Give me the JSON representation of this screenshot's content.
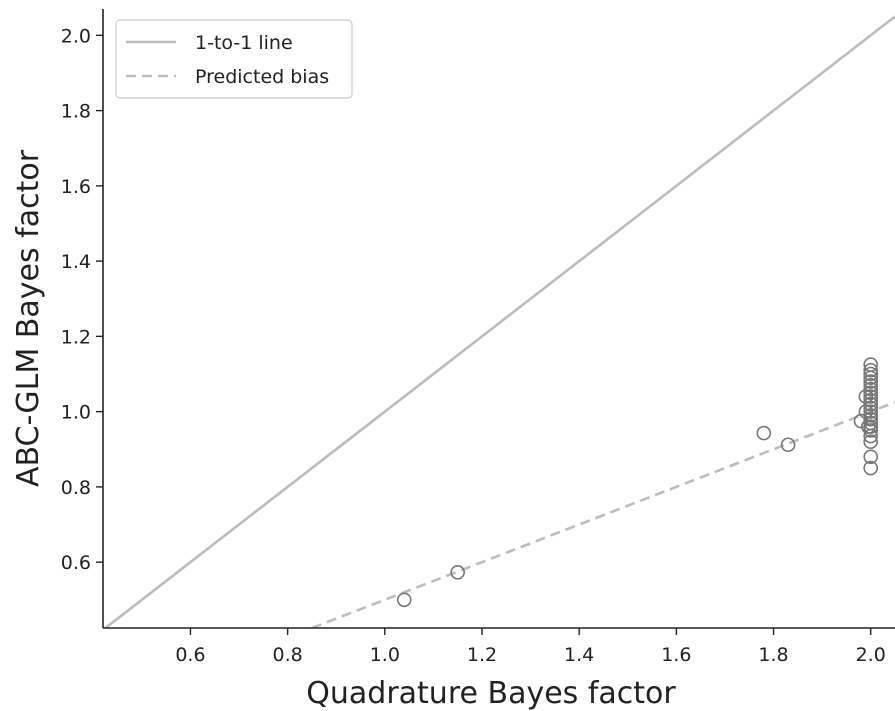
{
  "chart_data": {
    "type": "scatter",
    "xlabel": "Quadrature Bayes factor",
    "ylabel": "ABC-GLM Bayes factor",
    "xlim": [
      0.42,
      2.05
    ],
    "ylim": [
      0.425,
      2.07
    ],
    "xticks": [
      0.6,
      0.8,
      1.0,
      1.2,
      1.4,
      1.6,
      1.8,
      2.0
    ],
    "xtick_labels": [
      "0.6",
      "0.8",
      "1.0",
      "1.2",
      "1.4",
      "1.6",
      "1.8",
      "2.0"
    ],
    "yticks": [
      0.6,
      0.8,
      1.0,
      1.2,
      1.4,
      1.6,
      1.8,
      2.0
    ],
    "ytick_labels": [
      "0.6",
      "0.8",
      "1.0",
      "1.2",
      "1.4",
      "1.6",
      "1.8",
      "2.0"
    ],
    "grid": false,
    "legend_position": "top-left",
    "lines": [
      {
        "name": "1-to-1 line",
        "style": "solid",
        "slope": 1.0,
        "intercept": 0.0,
        "color": "#bdbdbd"
      },
      {
        "name": "Predicted bias",
        "style": "dashed",
        "slope": 0.5,
        "intercept": 0.0,
        "color": "#bdbdbd"
      }
    ],
    "points_color": "#777777",
    "points": [
      {
        "x": 1.04,
        "y": 0.5
      },
      {
        "x": 1.15,
        "y": 0.573
      },
      {
        "x": 1.78,
        "y": 0.943
      },
      {
        "x": 1.83,
        "y": 0.912
      },
      {
        "x": 2.0,
        "y": 0.85
      },
      {
        "x": 2.0,
        "y": 0.88
      },
      {
        "x": 2.0,
        "y": 0.92
      },
      {
        "x": 2.0,
        "y": 0.935
      },
      {
        "x": 2.0,
        "y": 0.95
      },
      {
        "x": 2.0,
        "y": 0.96
      },
      {
        "x": 2.0,
        "y": 0.97
      },
      {
        "x": 2.0,
        "y": 0.98
      },
      {
        "x": 2.0,
        "y": 0.99
      },
      {
        "x": 2.0,
        "y": 1.0
      },
      {
        "x": 2.0,
        "y": 1.01
      },
      {
        "x": 2.0,
        "y": 1.02
      },
      {
        "x": 2.0,
        "y": 1.03
      },
      {
        "x": 2.0,
        "y": 1.04
      },
      {
        "x": 2.0,
        "y": 1.05
      },
      {
        "x": 2.0,
        "y": 1.06
      },
      {
        "x": 2.0,
        "y": 1.07
      },
      {
        "x": 2.0,
        "y": 1.08
      },
      {
        "x": 2.0,
        "y": 1.09
      },
      {
        "x": 2.0,
        "y": 1.1
      },
      {
        "x": 2.0,
        "y": 1.11
      },
      {
        "x": 2.0,
        "y": 1.125
      },
      {
        "x": 1.98,
        "y": 0.975
      },
      {
        "x": 1.99,
        "y": 1.0
      },
      {
        "x": 1.99,
        "y": 1.04
      },
      {
        "x": 1.995,
        "y": 0.96
      }
    ]
  }
}
